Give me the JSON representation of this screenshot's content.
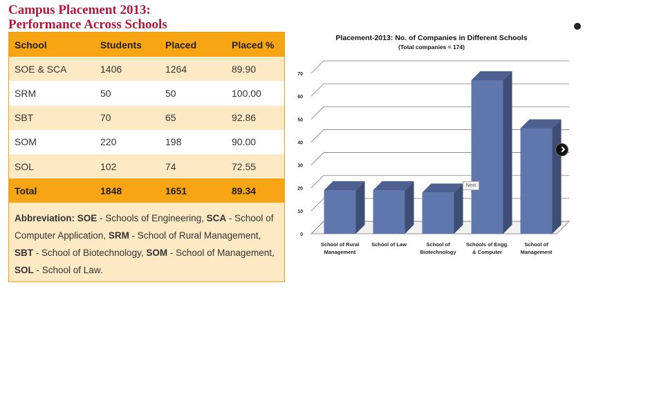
{
  "page": {
    "title_line1": "Campus Placement 2013:",
    "title_line2": "Performance Across Schools"
  },
  "table": {
    "headers": [
      "School",
      "Students",
      "Placed",
      "Placed %"
    ],
    "rows": [
      [
        "SOE & SCA",
        "1406",
        "1264",
        "89.90"
      ],
      [
        "SRM",
        "50",
        "50",
        "100.00"
      ],
      [
        "SBT",
        "70",
        "65",
        "92.86"
      ],
      [
        "SOM",
        "220",
        "198",
        "90.00"
      ],
      [
        "SOL",
        "102",
        "74",
        "72.55"
      ]
    ],
    "total": [
      "Total",
      "1848",
      "1651",
      "89.34"
    ]
  },
  "abbreviation": {
    "label": "Abbreviation:",
    "items": [
      {
        "abbr": "SOE",
        "text": " - Schools of Engineering, "
      },
      {
        "abbr": "SCA",
        "text": " - School of Computer Application, "
      },
      {
        "abbr": "SRM",
        "text": " - School of Rural Management, "
      },
      {
        "abbr": "SBT",
        "text": " - School of Biotechnology, "
      },
      {
        "abbr": "SOM",
        "text": " - School of Management, "
      },
      {
        "abbr": "SOL",
        "text": " - School of Law."
      }
    ]
  },
  "slider": {
    "next_label": "Next",
    "next_icon": "chevron-right-icon"
  },
  "chart_data": {
    "type": "bar",
    "title": "Placement-2013: No. of Companies in Different Schools",
    "subtitle": "(Total companies = 174)",
    "categories": [
      [
        "School of Rural",
        "Management"
      ],
      [
        "School of Law"
      ],
      [
        "School of",
        "Biotechnology"
      ],
      [
        "Schools of Engg.",
        "& Computer"
      ],
      [
        "School of",
        "Management"
      ]
    ],
    "values": [
      19,
      19,
      18,
      67,
      46
    ],
    "yticks": [
      "0",
      "10",
      "20",
      "30",
      "40",
      "50",
      "60",
      "70"
    ],
    "ylim": [
      0,
      70
    ],
    "grid": true,
    "three_d": true,
    "colors": {
      "bar_front": "#6077ad",
      "bar_side": "#3e4d74",
      "bar_top": "#4d6090",
      "grid": "#7a7a7a",
      "wall": "#ffffff",
      "floor": "#f1f1f1"
    }
  }
}
